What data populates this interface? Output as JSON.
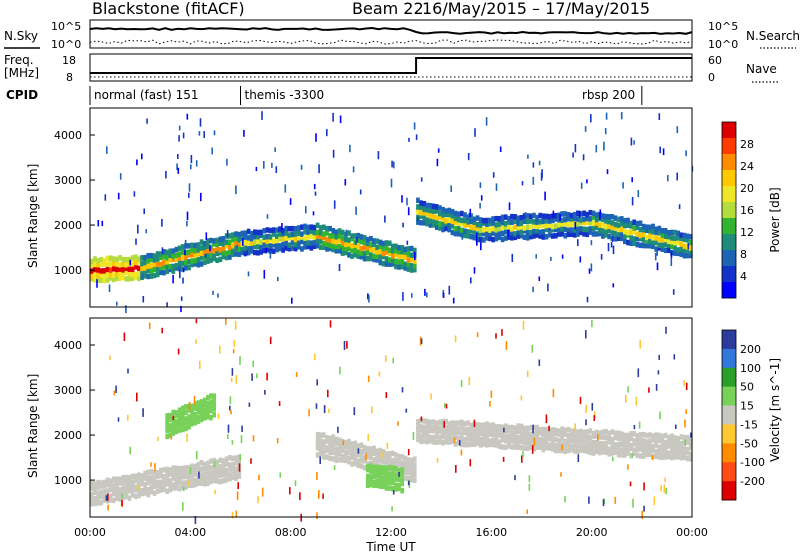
{
  "header": {
    "station": "Blackstone (fitACF)",
    "beam": "Beam 22",
    "date_range": "16/May/2015 – 17/May/2015"
  },
  "aux_panel": {
    "nsky_label": "N.Sky",
    "nsearch_label": "N.Search",
    "noise_left_ticks": [
      "10^5",
      "10^0"
    ],
    "noise_right_ticks": [
      "10^5",
      "10^0"
    ],
    "freq_label_line1": "Freq.",
    "freq_label_line2": "[MHz]",
    "freq_ticks": [
      "18",
      "8"
    ],
    "nave_ticks": [
      "60",
      "0"
    ],
    "nave_label": "Nave",
    "cpid_label": "CPID",
    "cpid_segments": [
      {
        "label": "normal (fast) 151",
        "start_hour": 0,
        "end_hour": 6
      },
      {
        "label": "themis -3300",
        "start_hour": 6,
        "end_hour": 22
      },
      {
        "label": "rbsp 200",
        "start_hour": 22,
        "end_hour": 24
      }
    ],
    "freq_step_hour": 13
  },
  "axes": {
    "ylabel": "Slant Range [km]",
    "y_ticks": [
      "4000",
      "3000",
      "2000",
      "1000"
    ],
    "xlabel": "Time UT",
    "x_ticks": [
      "00:00",
      "04:00",
      "08:00",
      "12:00",
      "16:00",
      "20:00",
      "00:00"
    ]
  },
  "power_colorbar": {
    "label": "Power [dB]",
    "ticks": [
      "28",
      "24",
      "20",
      "16",
      "12",
      "8",
      "4"
    ],
    "colors": [
      "#dc0000",
      "#ff3c00",
      "#ff8c00",
      "#ffc800",
      "#f0e628",
      "#b4dc3c",
      "#32b432",
      "#1e8c78",
      "#1e64b4",
      "#1432c8",
      "#0000ff"
    ]
  },
  "velocity_colorbar": {
    "label": "Velocity [m s^-1]",
    "ticks": [
      "200",
      "100",
      "50",
      "15",
      "-15",
      "-50",
      "-100",
      "-200"
    ],
    "colors": [
      "#2c3c9c",
      "#3278dc",
      "#2aa02a",
      "#78d25a",
      "#c8c8c0",
      "#ffc832",
      "#ff8c00",
      "#ff4b14",
      "#dc0000"
    ]
  },
  "chart_data": {
    "type": "heatmap",
    "title": "Blackstone (fitACF) Beam 22 16/May/2015 – 17/May/2015",
    "xlabel": "Time UT",
    "ylabel": "Slant Range [km]",
    "xlim_hours": [
      0,
      24
    ],
    "ylim_km": [
      180,
      4600
    ],
    "panels": [
      {
        "name": "Power",
        "units": "dB",
        "range": [
          0,
          30
        ],
        "echo_bands": [
          {
            "t_start": 0.0,
            "t_end": 2.0,
            "range_start_km": 1000,
            "range_end_km": 1050,
            "value": 22
          },
          {
            "t_start": 2.0,
            "t_end": 6.0,
            "range_start_km": 1050,
            "range_end_km": 1600,
            "value": 14
          },
          {
            "t_start": 6.0,
            "t_end": 9.0,
            "range_start_km": 1600,
            "range_end_km": 1750,
            "value": 10
          },
          {
            "t_start": 9.0,
            "t_end": 13.0,
            "range_start_km": 1750,
            "range_end_km": 1200,
            "value": 14
          },
          {
            "t_start": 13.0,
            "t_end": 15.5,
            "range_start_km": 2300,
            "range_end_km": 1900,
            "value": 12
          },
          {
            "t_start": 15.5,
            "t_end": 20.0,
            "range_start_km": 1900,
            "range_end_km": 2050,
            "value": 10
          },
          {
            "t_start": 20.0,
            "t_end": 24.0,
            "range_start_km": 2050,
            "range_end_km": 1500,
            "value": 12
          }
        ]
      },
      {
        "name": "Velocity",
        "units": "m s^-1",
        "range": [
          -200,
          200
        ],
        "echo_bands": [
          {
            "t_start": 0.0,
            "t_end": 6.0,
            "range_start_km": 700,
            "range_end_km": 1300,
            "value": 0
          },
          {
            "t_start": 3.0,
            "t_end": 5.0,
            "range_start_km": 2200,
            "range_end_km": 2700,
            "value": 40
          },
          {
            "t_start": 9.0,
            "t_end": 13.0,
            "range_start_km": 1800,
            "range_end_km": 1200,
            "value": 0
          },
          {
            "t_start": 11.0,
            "t_end": 12.5,
            "range_start_km": 1100,
            "range_end_km": 1000,
            "value": 35
          },
          {
            "t_start": 13.0,
            "t_end": 24.0,
            "range_start_km": 2100,
            "range_end_km": 1700,
            "value": 0
          }
        ]
      }
    ],
    "grid": false,
    "legend": "colorbars right"
  }
}
